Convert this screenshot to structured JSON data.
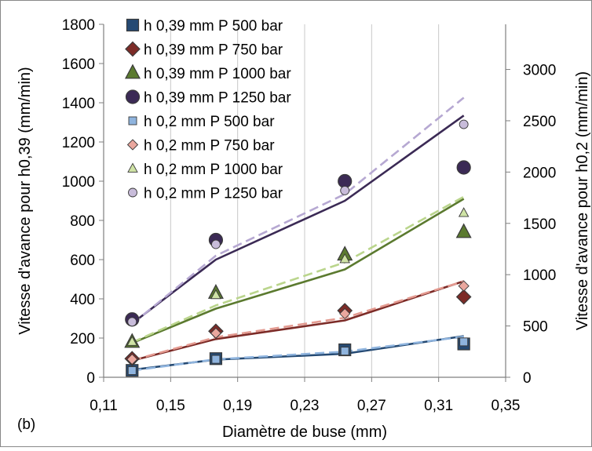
{
  "panel_label": "(b)",
  "chart_data": {
    "type": "scatter",
    "xlabel": "Diamètre de buse (mm)",
    "ylabel": "Vitesse d'avance pour h0,39 (mm/min)",
    "y2label": "Vitesse d'avance pour h0,2 (mm/min)",
    "xlim": [
      0.11,
      0.35
    ],
    "ylim": [
      0,
      1800
    ],
    "y2lim": [
      0,
      3440
    ],
    "x_ticks": [
      0.11,
      0.15,
      0.19,
      0.23,
      0.27,
      0.31,
      0.35
    ],
    "x_tick_labels": [
      "0,11",
      "0,15",
      "0,19",
      "0,23",
      "0,27",
      "0,31",
      "0,35"
    ],
    "y_ticks": [
      0,
      200,
      400,
      600,
      800,
      1000,
      1200,
      1400,
      1600,
      1800
    ],
    "y_tick_labels": [
      "0",
      "200",
      "400",
      "600",
      "800",
      "1000",
      "1200",
      "1400",
      "1600",
      "1800"
    ],
    "y2_ticks": [
      0,
      500,
      1000,
      1500,
      2000,
      2500,
      3000
    ],
    "y2_tick_labels": [
      "0",
      "500",
      "1000",
      "1500",
      "2000",
      "2500",
      "3000"
    ],
    "grid": "vertical",
    "legend_position": "top-left",
    "x": [
      0.127,
      0.177,
      0.254,
      0.325
    ],
    "series": [
      {
        "name": "h 0,39 mm P 500 bar",
        "axis": "left",
        "marker": "square",
        "size": "large",
        "color": "#254a73",
        "values": [
          35,
          95,
          140,
          170
        ]
      },
      {
        "name": "h 0,39 mm P 750 bar",
        "axis": "left",
        "marker": "diamond",
        "size": "large",
        "color": "#7c2b27",
        "values": [
          95,
          235,
          340,
          410
        ]
      },
      {
        "name": "h 0,39 mm P 1000 bar",
        "axis": "left",
        "marker": "triangle",
        "size": "large",
        "color": "#5b7a2f",
        "values": [
          180,
          430,
          625,
          740
        ]
      },
      {
        "name": "h 0,39 mm P 1250 bar",
        "axis": "left",
        "marker": "circle",
        "size": "large",
        "color": "#3b2a55",
        "values": [
          295,
          700,
          1000,
          1070
        ]
      },
      {
        "name": "h 0,2 mm P 500 bar",
        "axis": "right",
        "marker": "square",
        "size": "small",
        "color": "#8fb4de",
        "values": [
          65,
          175,
          255,
          345
        ]
      },
      {
        "name": "h 0,2 mm P 750 bar",
        "axis": "right",
        "marker": "diamond",
        "size": "small",
        "color": "#eaa79e",
        "values": [
          175,
          430,
          620,
          890
        ]
      },
      {
        "name": "h 0,2 mm P 1000 bar",
        "axis": "right",
        "marker": "triangle",
        "size": "small",
        "color": "#cfe3a5",
        "values": [
          345,
          800,
          1150,
          1600
        ]
      },
      {
        "name": "h 0,2 mm P 1250 bar",
        "axis": "right",
        "marker": "circle",
        "size": "small",
        "color": "#c8bcda",
        "values": [
          540,
          1295,
          1820,
          2465
        ]
      }
    ],
    "trend_lines": [
      {
        "axis": "left",
        "style": "solid",
        "color": "#254a73",
        "values": [
          38,
          90,
          120,
          210
        ]
      },
      {
        "axis": "left",
        "style": "solid",
        "color": "#7c2b27",
        "values": [
          85,
          195,
          290,
          490
        ]
      },
      {
        "axis": "left",
        "style": "solid",
        "color": "#5b7a2f",
        "values": [
          175,
          350,
          550,
          910
        ]
      },
      {
        "axis": "left",
        "style": "solid",
        "color": "#3b2a55",
        "values": [
          275,
          600,
          900,
          1335
        ]
      },
      {
        "axis": "right",
        "style": "dashed",
        "color": "#8fb4de",
        "values": [
          65,
          175,
          250,
          395
        ]
      },
      {
        "axis": "right",
        "style": "dashed",
        "color": "#e39a90",
        "values": [
          165,
          390,
          580,
          935
        ]
      },
      {
        "axis": "right",
        "style": "dashed",
        "color": "#bad58c",
        "values": [
          340,
          700,
          1120,
          1760
        ]
      },
      {
        "axis": "right",
        "style": "dashed",
        "color": "#b6a8d2",
        "values": [
          520,
          1185,
          1785,
          2725
        ]
      }
    ]
  }
}
